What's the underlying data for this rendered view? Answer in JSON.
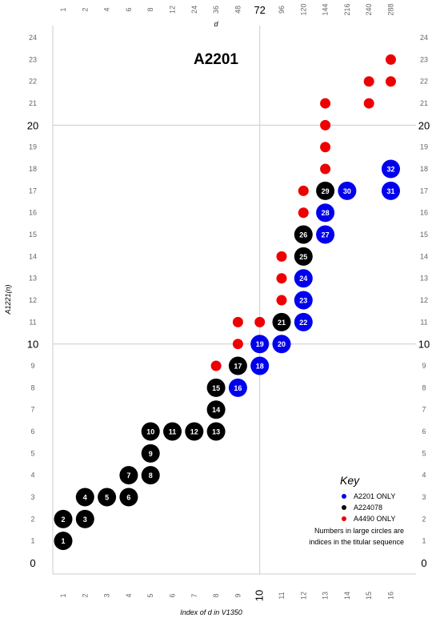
{
  "chart_data": {
    "type": "scatter",
    "title": "A2201",
    "xlabel": "Index of d in V1350",
    "ylabel": "A1221(n)",
    "top_xlabel": "d",
    "x_ticks": [
      "1",
      "2",
      "3",
      "4",
      "5",
      "6",
      "7",
      "8",
      "9",
      "10",
      "11",
      "12",
      "13",
      "14",
      "15",
      "16"
    ],
    "x_major_tick": "10",
    "top_ticks": [
      "1",
      "2",
      "4",
      "6",
      "8",
      "12",
      "24",
      "36",
      "48",
      "72",
      "96",
      "120",
      "144",
      "216",
      "240",
      "288"
    ],
    "top_major_tick": "72",
    "y_ticks": [
      "0",
      "1",
      "2",
      "3",
      "4",
      "5",
      "6",
      "7",
      "8",
      "9",
      "10",
      "11",
      "12",
      "13",
      "14",
      "15",
      "16",
      "17",
      "18",
      "19",
      "20",
      "21",
      "22",
      "23",
      "24"
    ],
    "y_major_ticks": [
      "0",
      "10",
      "20"
    ],
    "xlim": [
      1,
      16
    ],
    "ylim": [
      0,
      24
    ],
    "grid": "lines at x=10, y=10, y=20",
    "legend": {
      "title": "Key",
      "placement": "bottom-right",
      "entries": [
        {
          "label": "A2201 ONLY",
          "color": "#0000ee"
        },
        {
          "label": "A224078",
          "color": "#000000"
        },
        {
          "label": "A4490 ONLY",
          "color": "#ee0000"
        }
      ],
      "note_lines": [
        "Numbers in large circles are",
        "indices in the titular sequence"
      ]
    },
    "colors": {
      "blue": "#0000ee",
      "black": "#000000",
      "red": "#ee0000"
    },
    "points": [
      {
        "x": 1,
        "y": 1,
        "c": "black",
        "n": "1"
      },
      {
        "x": 1,
        "y": 2,
        "c": "black",
        "n": "2"
      },
      {
        "x": 2,
        "y": 2,
        "c": "black",
        "n": "3"
      },
      {
        "x": 2,
        "y": 3,
        "c": "black",
        "n": "4"
      },
      {
        "x": 3,
        "y": 3,
        "c": "black",
        "n": "5"
      },
      {
        "x": 4,
        "y": 3,
        "c": "black",
        "n": "6"
      },
      {
        "x": 4,
        "y": 4,
        "c": "black",
        "n": "7"
      },
      {
        "x": 5,
        "y": 4,
        "c": "black",
        "n": "8"
      },
      {
        "x": 5,
        "y": 5,
        "c": "black",
        "n": "9"
      },
      {
        "x": 5,
        "y": 6,
        "c": "black",
        "n": "10"
      },
      {
        "x": 6,
        "y": 6,
        "c": "black",
        "n": "11"
      },
      {
        "x": 7,
        "y": 6,
        "c": "black",
        "n": "12"
      },
      {
        "x": 8,
        "y": 6,
        "c": "black",
        "n": "13"
      },
      {
        "x": 8,
        "y": 7,
        "c": "black",
        "n": "14"
      },
      {
        "x": 8,
        "y": 8,
        "c": "black",
        "n": "15"
      },
      {
        "x": 9,
        "y": 8,
        "c": "blue",
        "n": "16"
      },
      {
        "x": 9,
        "y": 9,
        "c": "black",
        "n": "17"
      },
      {
        "x": 10,
        "y": 9,
        "c": "blue",
        "n": "18"
      },
      {
        "x": 10,
        "y": 10,
        "c": "blue",
        "n": "19"
      },
      {
        "x": 11,
        "y": 10,
        "c": "blue",
        "n": "20"
      },
      {
        "x": 11,
        "y": 11,
        "c": "black",
        "n": "21"
      },
      {
        "x": 12,
        "y": 11,
        "c": "blue",
        "n": "22"
      },
      {
        "x": 12,
        "y": 12,
        "c": "blue",
        "n": "23"
      },
      {
        "x": 12,
        "y": 13,
        "c": "blue",
        "n": "24"
      },
      {
        "x": 12,
        "y": 14,
        "c": "black",
        "n": "25"
      },
      {
        "x": 12,
        "y": 15,
        "c": "black",
        "n": "26"
      },
      {
        "x": 13,
        "y": 15,
        "c": "blue",
        "n": "27"
      },
      {
        "x": 13,
        "y": 16,
        "c": "blue",
        "n": "28"
      },
      {
        "x": 13,
        "y": 17,
        "c": "black",
        "n": "29"
      },
      {
        "x": 14,
        "y": 17,
        "c": "blue",
        "n": "30"
      },
      {
        "x": 16,
        "y": 17,
        "c": "blue",
        "n": "31"
      },
      {
        "x": 16,
        "y": 18,
        "c": "blue",
        "n": "32"
      },
      {
        "x": 8,
        "y": 9,
        "c": "red",
        "n": ""
      },
      {
        "x": 9,
        "y": 10,
        "c": "red",
        "n": ""
      },
      {
        "x": 9,
        "y": 11,
        "c": "red",
        "n": ""
      },
      {
        "x": 10,
        "y": 11,
        "c": "red",
        "n": ""
      },
      {
        "x": 11,
        "y": 12,
        "c": "red",
        "n": ""
      },
      {
        "x": 11,
        "y": 13,
        "c": "red",
        "n": ""
      },
      {
        "x": 11,
        "y": 14,
        "c": "red",
        "n": ""
      },
      {
        "x": 12,
        "y": 16,
        "c": "red",
        "n": ""
      },
      {
        "x": 12,
        "y": 17,
        "c": "red",
        "n": ""
      },
      {
        "x": 13,
        "y": 18,
        "c": "red",
        "n": ""
      },
      {
        "x": 13,
        "y": 19,
        "c": "red",
        "n": ""
      },
      {
        "x": 13,
        "y": 20,
        "c": "red",
        "n": ""
      },
      {
        "x": 13,
        "y": 21,
        "c": "red",
        "n": ""
      },
      {
        "x": 15,
        "y": 21,
        "c": "red",
        "n": ""
      },
      {
        "x": 15,
        "y": 22,
        "c": "red",
        "n": ""
      },
      {
        "x": 16,
        "y": 22,
        "c": "red",
        "n": ""
      },
      {
        "x": 16,
        "y": 23,
        "c": "red",
        "n": ""
      }
    ]
  }
}
